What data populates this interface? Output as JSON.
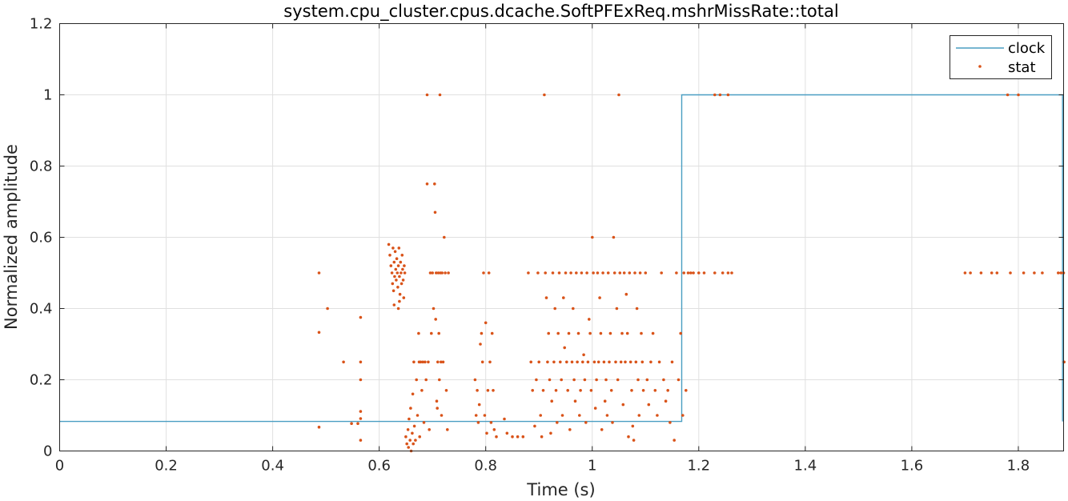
{
  "chart_data": {
    "type": "scatter",
    "title": "system.cpu_cluster.cpus.dcache.SoftPFExReq.mshrMissRate::total",
    "xlabel": "Time (s)",
    "ylabel": "Normalized amplitude",
    "xlim": [
      0,
      1.885
    ],
    "ylim": [
      0,
      1.2
    ],
    "xticks": [
      0,
      0.2,
      0.4,
      0.6,
      0.8,
      1,
      1.2,
      1.4,
      1.6,
      1.8
    ],
    "xtick_labels": [
      "0",
      "0.2",
      "0.4",
      "0.6",
      "0.8",
      "1",
      "1.2",
      "1.4",
      "1.6",
      "1.8"
    ],
    "yticks": [
      0,
      0.2,
      0.4,
      0.6,
      0.8,
      1,
      1.2
    ],
    "ytick_labels": [
      "0",
      "0.2",
      "0.4",
      "0.6",
      "0.8",
      "1",
      "1.2"
    ],
    "grid": true,
    "legend_position": "top-right",
    "colors": {
      "clock": "#4a9ec2",
      "stat": "#d95319",
      "grid": "#e0e0e0",
      "axis": "#262626"
    },
    "series": [
      {
        "name": "clock",
        "kind": "step-line",
        "x": [
          0,
          1.168,
          1.168,
          1.883,
          1.883
        ],
        "y": [
          0.083,
          0.083,
          1.0,
          1.0,
          0.083
        ]
      },
      {
        "name": "stat",
        "kind": "points",
        "points": [
          [
            0.487,
            0.5
          ],
          [
            0.487,
            0.333
          ],
          [
            0.487,
            0.067
          ],
          [
            0.503,
            0.4
          ],
          [
            0.533,
            0.25
          ],
          [
            0.548,
            0.077
          ],
          [
            0.56,
            0.077
          ],
          [
            0.565,
            0.375
          ],
          [
            0.565,
            0.25
          ],
          [
            0.565,
            0.2
          ],
          [
            0.565,
            0.111
          ],
          [
            0.565,
            0.091
          ],
          [
            0.565,
            0.03
          ],
          [
            0.618,
            0.58
          ],
          [
            0.62,
            0.55
          ],
          [
            0.622,
            0.52
          ],
          [
            0.624,
            0.5
          ],
          [
            0.625,
            0.47
          ],
          [
            0.626,
            0.57
          ],
          [
            0.627,
            0.45
          ],
          [
            0.628,
            0.53
          ],
          [
            0.629,
            0.49
          ],
          [
            0.63,
            0.56
          ],
          [
            0.631,
            0.51
          ],
          [
            0.632,
            0.48
          ],
          [
            0.633,
            0.54
          ],
          [
            0.634,
            0.5
          ],
          [
            0.635,
            0.46
          ],
          [
            0.636,
            0.52
          ],
          [
            0.637,
            0.57
          ],
          [
            0.638,
            0.49
          ],
          [
            0.639,
            0.44
          ],
          [
            0.64,
            0.53
          ],
          [
            0.641,
            0.5
          ],
          [
            0.642,
            0.47
          ],
          [
            0.643,
            0.55
          ],
          [
            0.644,
            0.51
          ],
          [
            0.645,
            0.48
          ],
          [
            0.646,
            0.43
          ],
          [
            0.647,
            0.52
          ],
          [
            0.648,
            0.5
          ],
          [
            0.638,
            0.42
          ],
          [
            0.628,
            0.41
          ],
          [
            0.636,
            0.4
          ],
          [
            0.65,
            0.04
          ],
          [
            0.652,
            0.02
          ],
          [
            0.654,
            0.06
          ],
          [
            0.655,
            0.01
          ],
          [
            0.656,
            0.09
          ],
          [
            0.658,
            0.03
          ],
          [
            0.659,
            0.12
          ],
          [
            0.66,
            0.0
          ],
          [
            0.662,
            0.05
          ],
          [
            0.663,
            0.16
          ],
          [
            0.664,
            0.02
          ],
          [
            0.665,
            0.25
          ],
          [
            0.666,
            0.07
          ],
          [
            0.668,
            0.03
          ],
          [
            0.67,
            0.2
          ],
          [
            0.672,
            0.1
          ],
          [
            0.674,
            0.33
          ],
          [
            0.675,
            0.25
          ],
          [
            0.676,
            0.04
          ],
          [
            0.678,
            0.25
          ],
          [
            0.68,
            0.17
          ],
          [
            0.682,
            0.25
          ],
          [
            0.684,
            0.08
          ],
          [
            0.686,
            0.25
          ],
          [
            0.688,
            0.2
          ],
          [
            0.69,
            1.0
          ],
          [
            0.69,
            0.75
          ],
          [
            0.692,
            0.25
          ],
          [
            0.694,
            0.06
          ],
          [
            0.696,
            0.5
          ],
          [
            0.698,
            0.33
          ],
          [
            0.7,
            0.5
          ],
          [
            0.702,
            0.4
          ],
          [
            0.704,
            0.75
          ],
          [
            0.705,
            0.67
          ],
          [
            0.706,
            0.37
          ],
          [
            0.707,
            0.5
          ],
          [
            0.708,
            0.14
          ],
          [
            0.709,
            0.12
          ],
          [
            0.71,
            0.25
          ],
          [
            0.711,
            0.5
          ],
          [
            0.712,
            0.33
          ],
          [
            0.713,
            0.2
          ],
          [
            0.714,
            1.0
          ],
          [
            0.715,
            0.5
          ],
          [
            0.716,
            0.25
          ],
          [
            0.717,
            0.1
          ],
          [
            0.718,
            0.5
          ],
          [
            0.72,
            0.25
          ],
          [
            0.722,
            0.6
          ],
          [
            0.724,
            0.5
          ],
          [
            0.726,
            0.17
          ],
          [
            0.728,
            0.06
          ],
          [
            0.73,
            0.5
          ],
          [
            0.78,
            0.2
          ],
          [
            0.782,
            0.1
          ],
          [
            0.784,
            0.17
          ],
          [
            0.786,
            0.08
          ],
          [
            0.788,
            0.13
          ],
          [
            0.79,
            0.3
          ],
          [
            0.792,
            0.33
          ],
          [
            0.794,
            0.25
          ],
          [
            0.796,
            0.5
          ],
          [
            0.798,
            0.1
          ],
          [
            0.8,
            0.36
          ],
          [
            0.802,
            0.05
          ],
          [
            0.804,
            0.17
          ],
          [
            0.806,
            0.5
          ],
          [
            0.808,
            0.25
          ],
          [
            0.81,
            0.08
          ],
          [
            0.812,
            0.33
          ],
          [
            0.814,
            0.17
          ],
          [
            0.816,
            0.06
          ],
          [
            0.82,
            0.04
          ],
          [
            0.835,
            0.09
          ],
          [
            0.84,
            0.05
          ],
          [
            0.85,
            0.04
          ],
          [
            0.86,
            0.04
          ],
          [
            0.87,
            0.04
          ],
          [
            0.88,
            0.5
          ],
          [
            0.885,
            0.25
          ],
          [
            0.888,
            0.17
          ],
          [
            0.892,
            0.07
          ],
          [
            0.895,
            0.2
          ],
          [
            0.898,
            0.5
          ],
          [
            0.9,
            0.25
          ],
          [
            0.903,
            0.1
          ],
          [
            0.905,
            0.04
          ],
          [
            0.908,
            0.17
          ],
          [
            0.91,
            1.0
          ],
          [
            0.912,
            0.5
          ],
          [
            0.914,
            0.43
          ],
          [
            0.916,
            0.25
          ],
          [
            0.918,
            0.33
          ],
          [
            0.92,
            0.2
          ],
          [
            0.922,
            0.05
          ],
          [
            0.924,
            0.14
          ],
          [
            0.926,
            0.5
          ],
          [
            0.928,
            0.25
          ],
          [
            0.93,
            0.4
          ],
          [
            0.932,
            0.17
          ],
          [
            0.934,
            0.08
          ],
          [
            0.936,
            0.33
          ],
          [
            0.938,
            0.5
          ],
          [
            0.94,
            0.25
          ],
          [
            0.942,
            0.2
          ],
          [
            0.944,
            0.1
          ],
          [
            0.946,
            0.43
          ],
          [
            0.948,
            0.29
          ],
          [
            0.95,
            0.5
          ],
          [
            0.952,
            0.25
          ],
          [
            0.954,
            0.17
          ],
          [
            0.956,
            0.33
          ],
          [
            0.958,
            0.06
          ],
          [
            0.96,
            0.5
          ],
          [
            0.962,
            0.25
          ],
          [
            0.964,
            0.4
          ],
          [
            0.966,
            0.2
          ],
          [
            0.968,
            0.14
          ],
          [
            0.97,
            0.5
          ],
          [
            0.972,
            0.25
          ],
          [
            0.974,
            0.33
          ],
          [
            0.976,
            0.1
          ],
          [
            0.978,
            0.17
          ],
          [
            0.98,
            0.5
          ],
          [
            0.982,
            0.25
          ],
          [
            0.984,
            0.27
          ],
          [
            0.986,
            0.2
          ],
          [
            0.988,
            0.08
          ],
          [
            0.99,
            0.5
          ],
          [
            0.992,
            0.25
          ],
          [
            0.994,
            0.37
          ],
          [
            0.996,
            0.33
          ],
          [
            0.998,
            0.17
          ],
          [
            1.0,
            0.6
          ],
          [
            1.002,
            0.5
          ],
          [
            1.004,
            0.25
          ],
          [
            1.006,
            0.12
          ],
          [
            1.008,
            0.2
          ],
          [
            1.01,
            0.5
          ],
          [
            1.012,
            0.25
          ],
          [
            1.014,
            0.43
          ],
          [
            1.016,
            0.33
          ],
          [
            1.018,
            0.06
          ],
          [
            1.02,
            0.5
          ],
          [
            1.022,
            0.25
          ],
          [
            1.024,
            0.14
          ],
          [
            1.026,
            0.2
          ],
          [
            1.028,
            0.1
          ],
          [
            1.03,
            0.5
          ],
          [
            1.032,
            0.25
          ],
          [
            1.034,
            0.33
          ],
          [
            1.036,
            0.17
          ],
          [
            1.038,
            0.08
          ],
          [
            1.04,
            0.6
          ],
          [
            1.042,
            0.5
          ],
          [
            1.044,
            0.25
          ],
          [
            1.046,
            0.4
          ],
          [
            1.048,
            0.2
          ],
          [
            1.05,
            1.0
          ],
          [
            1.052,
            0.5
          ],
          [
            1.054,
            0.25
          ],
          [
            1.056,
            0.33
          ],
          [
            1.058,
            0.13
          ],
          [
            1.06,
            0.5
          ],
          [
            1.062,
            0.25
          ],
          [
            1.064,
            0.44
          ],
          [
            1.066,
            0.33
          ],
          [
            1.068,
            0.04
          ],
          [
            1.07,
            0.5
          ],
          [
            1.072,
            0.25
          ],
          [
            1.074,
            0.17
          ],
          [
            1.076,
            0.07
          ],
          [
            1.078,
            0.03
          ],
          [
            1.08,
            0.5
          ],
          [
            1.082,
            0.25
          ],
          [
            1.084,
            0.4
          ],
          [
            1.086,
            0.2
          ],
          [
            1.088,
            0.1
          ],
          [
            1.09,
            0.5
          ],
          [
            1.092,
            0.33
          ],
          [
            1.094,
            0.25
          ],
          [
            1.096,
            0.17
          ],
          [
            1.1,
            0.5
          ],
          [
            1.103,
            0.2
          ],
          [
            1.106,
            0.13
          ],
          [
            1.11,
            0.25
          ],
          [
            1.114,
            0.33
          ],
          [
            1.118,
            0.17
          ],
          [
            1.122,
            0.1
          ],
          [
            1.126,
            0.25
          ],
          [
            1.13,
            0.5
          ],
          [
            1.134,
            0.2
          ],
          [
            1.138,
            0.14
          ],
          [
            1.142,
            0.17
          ],
          [
            1.146,
            0.08
          ],
          [
            1.15,
            0.25
          ],
          [
            1.154,
            0.03
          ],
          [
            1.158,
            0.5
          ],
          [
            1.162,
            0.2
          ],
          [
            1.166,
            0.33
          ],
          [
            1.17,
            0.1
          ],
          [
            1.172,
            0.5
          ],
          [
            1.176,
            0.17
          ],
          [
            1.18,
            0.5
          ],
          [
            1.185,
            0.5
          ],
          [
            1.19,
            0.5
          ],
          [
            1.2,
            0.5
          ],
          [
            1.21,
            0.5
          ],
          [
            1.23,
            1.0
          ],
          [
            1.24,
            1.0
          ],
          [
            1.255,
            1.0
          ],
          [
            1.23,
            0.5
          ],
          [
            1.245,
            0.5
          ],
          [
            1.255,
            0.5
          ],
          [
            1.262,
            0.5
          ],
          [
            1.7,
            0.5
          ],
          [
            1.71,
            0.5
          ],
          [
            1.73,
            0.5
          ],
          [
            1.75,
            0.5
          ],
          [
            1.76,
            0.5
          ],
          [
            1.78,
            1.0
          ],
          [
            1.8,
            1.0
          ],
          [
            1.785,
            0.5
          ],
          [
            1.81,
            0.5
          ],
          [
            1.83,
            0.5
          ],
          [
            1.845,
            0.5
          ],
          [
            1.875,
            0.5
          ],
          [
            1.88,
            0.5
          ],
          [
            1.885,
            0.5
          ],
          [
            1.886,
            0.25
          ]
        ]
      }
    ]
  }
}
